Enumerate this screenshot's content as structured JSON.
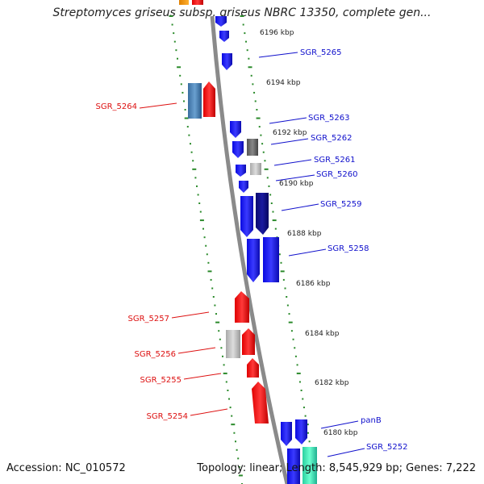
{
  "title": "Streptomyces griseus subsp. griseus NBRC 13350, complete gen...",
  "footer": {
    "accession": "Accession: NC_010572",
    "summary": "Topology: linear; Length: 8,545,929 bp; Genes: 7,222"
  },
  "colors": {
    "forward_gene": "#1a1aee",
    "reverse_gene": "#ee1a1a",
    "backbone": "#888888",
    "tick_track": "#2a8a2a",
    "label_blue": "#1010cc",
    "label_red": "#dd1010"
  },
  "kbp_labels": [
    "6196 kbp",
    "6194 kbp",
    "6192 kbp",
    "6190 kbp",
    "6188 kbp",
    "6186 kbp",
    "6184 kbp",
    "6182 kbp",
    "6180 kbp"
  ],
  "forward_labels": [
    "SGR_5265",
    "SGR_5263",
    "SGR_5262",
    "SGR_5261",
    "SGR_5260",
    "SGR_5259",
    "SGR_5258",
    "panB",
    "SGR_5252"
  ],
  "reverse_labels": [
    "SGR_5264",
    "SGR_5257",
    "SGR_5256",
    "SGR_5255",
    "SGR_5254"
  ]
}
